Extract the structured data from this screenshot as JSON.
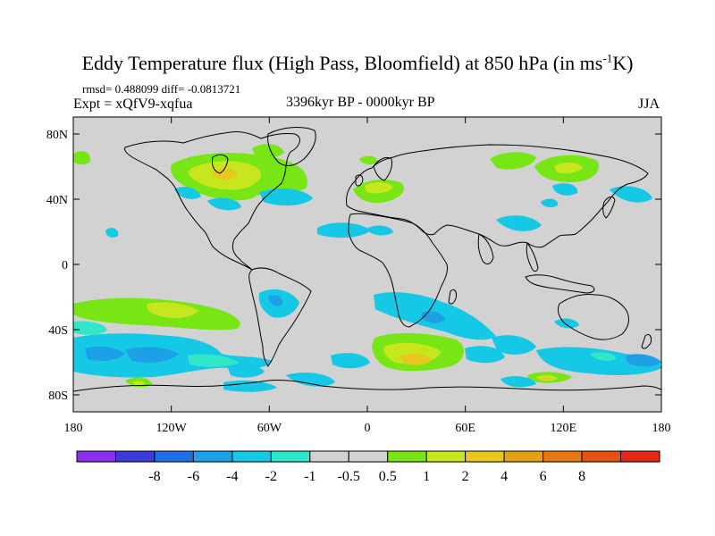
{
  "title": {
    "main": "Eddy Temperature flux (High Pass, Bloomfield) at 850 hPa (in ms",
    "sup": "-1",
    "end": "K)"
  },
  "stats": "rmsd= 0.488099 diff= -0.0813721",
  "expt": "Expt = xQfV9-xqfua",
  "period": "3396kyr BP - 0000kyr BP",
  "season": "JJA",
  "map": {
    "background_color": "#d2d2d2",
    "lon_ticks": [
      "180",
      "120W",
      "60W",
      "0",
      "60E",
      "120E",
      "180"
    ],
    "lat_ticks": [
      "80N",
      "40N",
      "0",
      "40S",
      "80S"
    ]
  },
  "colorbar": {
    "colors": [
      "#8c2ef0",
      "#3c3cdc",
      "#1e6ee6",
      "#1ea0e6",
      "#14c8e6",
      "#32e6c8",
      "#d2d2d2",
      "#d2d2d2",
      "#78e614",
      "#c8e61e",
      "#e6c81e",
      "#e6a014",
      "#e67814",
      "#e65014",
      "#e62814"
    ],
    "labels": [
      "-8",
      "-6",
      "-4",
      "-2",
      "-1",
      "-0.5",
      "0.5",
      "1",
      "2",
      "4",
      "6",
      "8"
    ]
  },
  "legend_colors": {
    "cyan": "#14c8e6",
    "blue": "#1ea0e6",
    "teal": "#32e6c8",
    "green": "#78e614",
    "yellow": "#c8e61e",
    "orange": "#e6c81e"
  }
}
